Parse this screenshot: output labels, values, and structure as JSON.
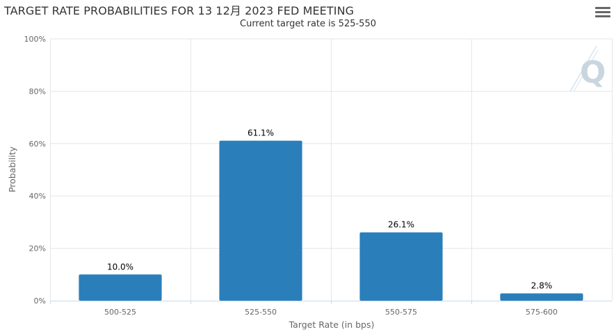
{
  "chart_data": {
    "type": "bar",
    "title": "TARGET RATE PROBABILITIES FOR 13 12月 2023 FED MEETING",
    "subtitle": "Current target rate is 525-550",
    "xlabel": "Target Rate (in bps)",
    "ylabel": "Probability",
    "categories": [
      "500-525",
      "525-550",
      "550-575",
      "575-600"
    ],
    "values": [
      10.0,
      61.1,
      26.1,
      2.8
    ],
    "data_labels": [
      "10.0%",
      "61.1%",
      "26.1%",
      "2.8%"
    ],
    "ylim": [
      0,
      100
    ],
    "yticks": [
      "0%",
      "20%",
      "40%",
      "60%",
      "80%",
      "100%"
    ],
    "ytick_values": [
      0,
      20,
      40,
      60,
      80,
      100
    ],
    "grid": true,
    "bar_color": "#2a7fba",
    "grid_color": "#e6e6e6"
  },
  "watermark": {
    "letter": "Q",
    "color": "#c9d6e0"
  },
  "menu": {
    "icon": "hamburger-menu-icon"
  }
}
